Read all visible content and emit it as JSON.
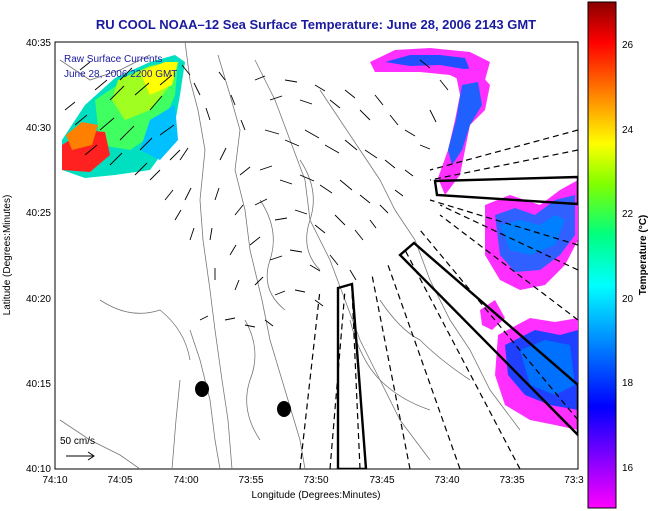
{
  "title": "RU COOL  NOAA–12  Sea Surface Temperature:  June 28, 2006 2143 GMT",
  "legend_line1": "Raw Surface Currents",
  "legend_line2": "June 28, 2006 2200 GMT",
  "scale_label": "50 cm/s",
  "x_axis_label": "Longitude (Degrees:Minutes)",
  "y_axis_label": "Latitude (Degrees:Minutes)",
  "colorbar_label": "Temperature (°C)",
  "x_ticks": [
    "74:10",
    "74:05",
    "74:00",
    "73:55",
    "73:50",
    "73:45",
    "73:40",
    "73:35",
    "73:3"
  ],
  "y_ticks": [
    "40:35",
    "40:30",
    "40:25",
    "40:20",
    "40:15",
    "40:10"
  ],
  "colorbar_ticks": [
    "26",
    "24",
    "22",
    "20",
    "18",
    "16"
  ],
  "colors": {
    "title": "#1a1aa0",
    "colorbar": [
      "#ff00ff",
      "#8000ff",
      "#0000ff",
      "#0080ff",
      "#00ffff",
      "#00ff80",
      "#80ff00",
      "#ffff00",
      "#ff8000",
      "#ff0000",
      "#8b0000"
    ]
  }
}
